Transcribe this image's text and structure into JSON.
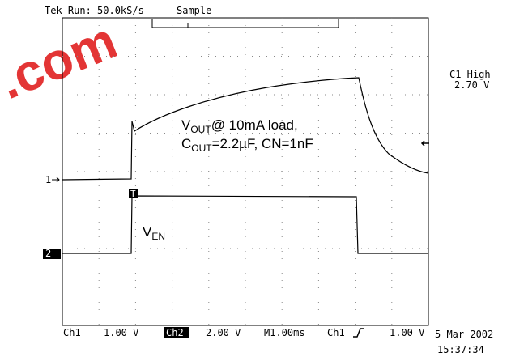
{
  "header": {
    "status": "Tek Run: 50.0kS/s",
    "mode": "Sample"
  },
  "watermark": ".com",
  "trigger_level": {
    "title": "C1 High",
    "value": "2.70 V"
  },
  "annotations": {
    "vout": {
      "v": "V",
      "sub": "OUT",
      "rest": "@ 10mA load,"
    },
    "cout": {
      "c": "C",
      "sub": "OUT",
      "rest": "=2.2µF, CN=1nF"
    },
    "ven": {
      "v": "V",
      "sub": "EN"
    }
  },
  "markers": {
    "ch1": "1",
    "ch2": "2",
    "trigger": "T"
  },
  "footer": {
    "ch1": "Ch1",
    "ch1_scale": "1.00 V",
    "ch2": "Ch2",
    "ch2_scale": "2.00 V",
    "timebase": "M1.00ms",
    "trig_source": "Ch1",
    "trig_level": "1.00 V"
  },
  "timestamp": {
    "date": "5 Mar 2002",
    "time": "15:37:34"
  }
}
